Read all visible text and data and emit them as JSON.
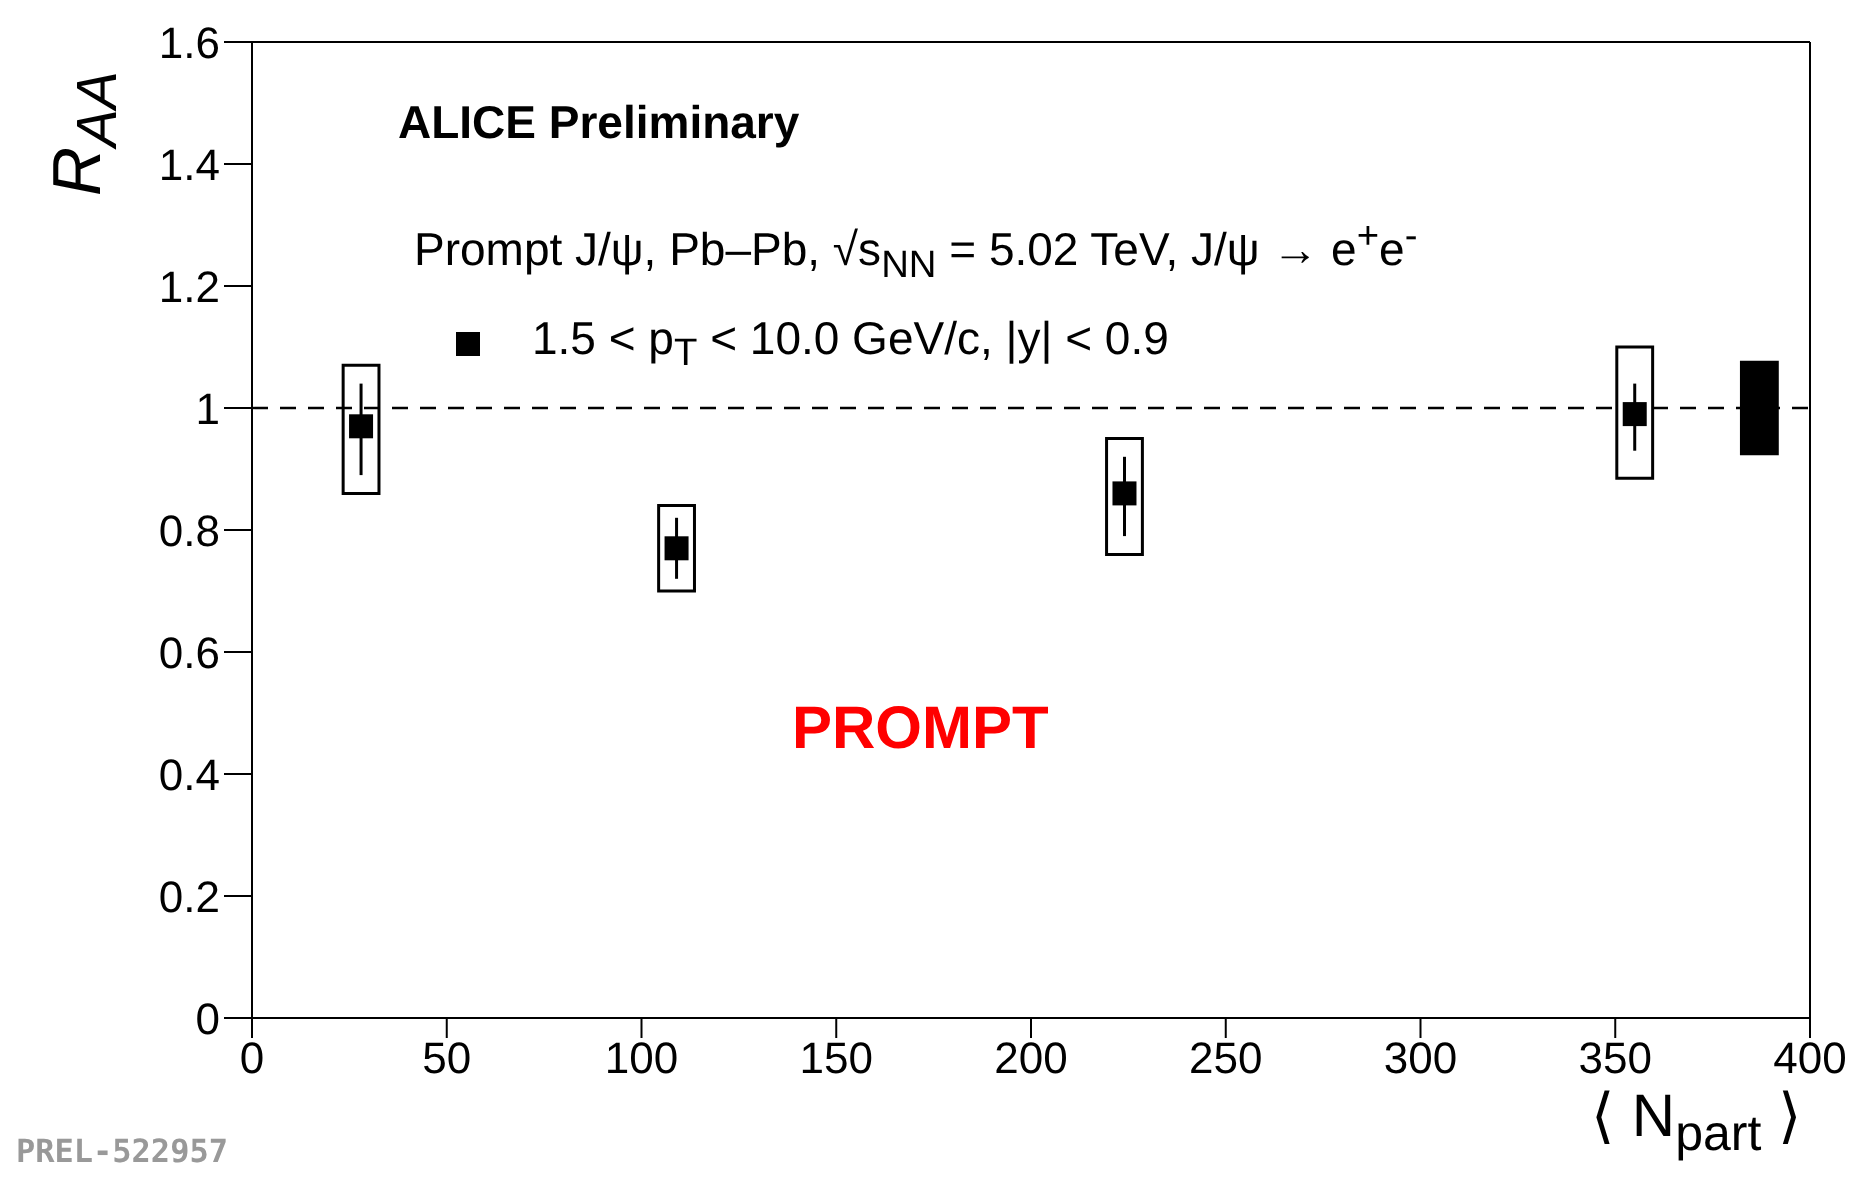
{
  "chart_data": {
    "type": "scatter",
    "xlabel": "⟨ N$_{part}$ ⟩",
    "ylabel": "R$_{AA}$",
    "x": [
      28,
      109,
      224,
      355
    ],
    "series": [
      {
        "name": "1.5 < p$_{T}$ < 10.0 GeV/c,  |y| < 0.9",
        "color": "#000000",
        "values": [
          0.97,
          0.77,
          0.86,
          0.99
        ],
        "errors": [
          [
            0.89,
            1.04
          ],
          [
            0.72,
            0.82
          ],
          [
            0.79,
            0.92
          ],
          [
            0.93,
            1.04
          ]
        ]
      },
      {
        "type": "bar",
        "color": "#000000",
        "x": [
          28,
          109,
          224,
          355
        ],
        "base": [
          0.86,
          0.7,
          0.76,
          0.885
        ],
        "values": [
          0.21,
          0.14,
          0.19,
          0.215
        ]
      },
      {
        "type": "bar",
        "color": "#000000",
        "x": [
          387
        ],
        "base": [
          0.925
        ],
        "values": [
          0.15
        ]
      }
    ],
    "xlim": [
      0,
      400
    ],
    "xticks": [
      0,
      50,
      100,
      150,
      200,
      250,
      300,
      350,
      400
    ],
    "ylim": [
      0,
      1.6
    ],
    "yticks": [
      0,
      0.2,
      0.4,
      0.6,
      0.8,
      1,
      1.2,
      1.4,
      1.6
    ],
    "ref_lines": [
      {
        "axis": "y",
        "value": 1,
        "line_style": "dashed",
        "color": "#000000"
      }
    ],
    "annotations": [
      "ALICE Preliminary",
      "Prompt J/ψ, Pb–Pb, √s$_{NN}$ = 5.02 TeV, J/ψ → e$^{+}$e$^{-}$",
      "PROMPT",
      "PREL-522957"
    ],
    "legend": "top left",
    "marker": "square",
    "grid": false
  }
}
